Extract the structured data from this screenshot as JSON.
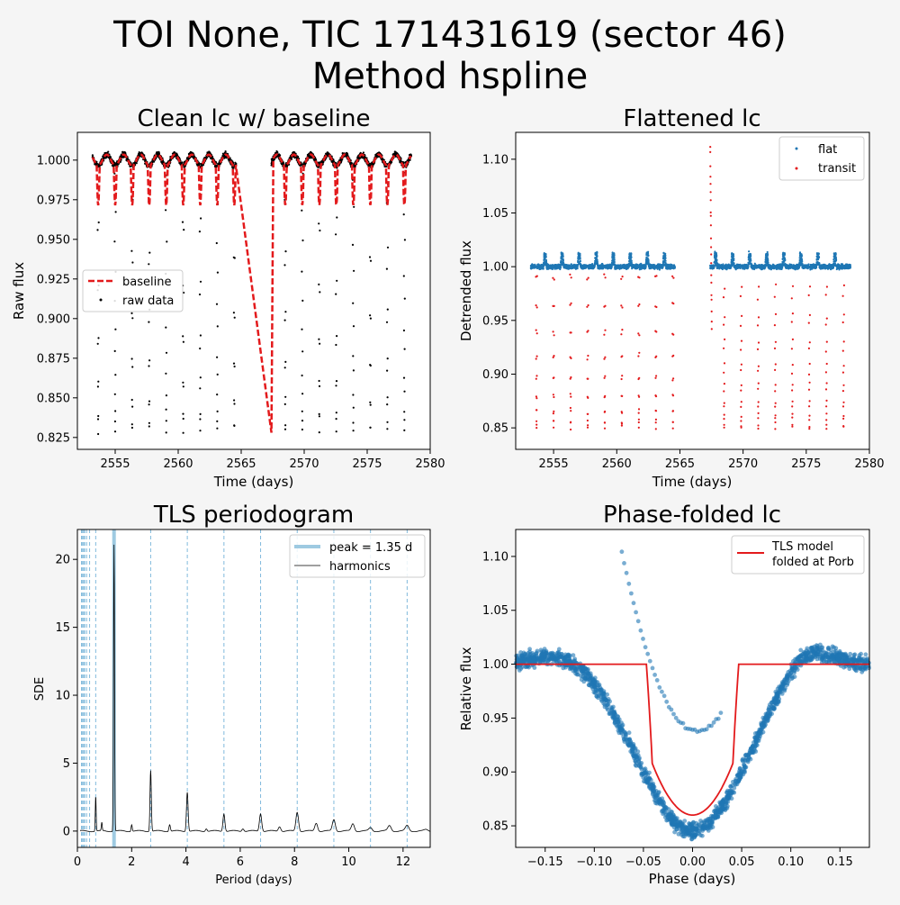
{
  "figure": {
    "title_line1": "TOI None, TIC 171431619 (sector 46)",
    "title_line2": "Method hspline"
  },
  "colors": {
    "background": "#f5f5f5",
    "flat": "#1f77b4",
    "transit": "#e31a1c",
    "baseline": "#e31a1c",
    "raw": "#000000",
    "peak": "#9ecae1",
    "harmonic_line": "#6baed6",
    "model": "#e31a1c"
  },
  "chart_data": [
    {
      "id": "clean",
      "type": "scatter",
      "title": "Clean lc w/ baseline",
      "xlabel": "Time (days)",
      "ylabel": "Raw flux",
      "xlim": [
        2552,
        2580
      ],
      "ylim": [
        0.8175,
        1.0175
      ],
      "xticks": [
        2555,
        2560,
        2565,
        2570,
        2575,
        2580
      ],
      "yticks": [
        0.825,
        0.85,
        0.875,
        0.9,
        0.925,
        0.95,
        0.975,
        1.0
      ],
      "ytick_labels": [
        "0.825",
        "0.850",
        "0.875",
        "0.900",
        "0.925",
        "0.950",
        "0.975",
        "1.000"
      ],
      "legend": {
        "position": "center-left",
        "entries": [
          "baseline",
          "raw data"
        ]
      },
      "segments": [
        [
          2553.2,
          2564.6
        ],
        [
          2567.4,
          2578.5
        ]
      ],
      "period": 1.35,
      "first_transit": 2553.65,
      "transit_depth_raw": 0.168,
      "baseline_dip_depth": 0.025,
      "baseline_gap_minimum": [
        2567.4,
        0.828
      ]
    },
    {
      "id": "flat",
      "type": "scatter",
      "title": "Flattened lc",
      "xlabel": "Time (days)",
      "ylabel": "Detrended flux",
      "xlim": [
        2552,
        2580
      ],
      "ylim": [
        0.83,
        1.125
      ],
      "xticks": [
        2555,
        2560,
        2565,
        2570,
        2575,
        2580
      ],
      "yticks": [
        0.85,
        0.9,
        0.95,
        1.0,
        1.05,
        1.1
      ],
      "ytick_labels": [
        "0.85",
        "0.90",
        "0.95",
        "1.00",
        "1.05",
        "1.10"
      ],
      "legend": {
        "position": "top-right",
        "entries": [
          "flat",
          "transit"
        ]
      },
      "transit_depth": 0.15,
      "segment_start_spike": 1.112
    },
    {
      "id": "tls",
      "type": "line",
      "title": "TLS periodogram",
      "xlabel": "Period (days)",
      "ylabel": "SDE",
      "xlim": [
        0,
        13
      ],
      "ylim": [
        -1.2,
        22.2
      ],
      "xticks": [
        0,
        2,
        4,
        6,
        8,
        10,
        12
      ],
      "yticks": [
        0,
        5,
        10,
        15,
        20
      ],
      "legend": {
        "position": "top-right",
        "entries": [
          "peak = 1.35 d",
          "harmonics"
        ]
      },
      "peak_period": 1.35,
      "harmonic_periods": [
        0.15,
        0.19,
        0.23,
        0.27,
        0.34,
        0.45,
        0.675,
        2.7,
        4.05,
        5.4,
        6.75,
        8.1,
        9.45,
        10.8,
        12.15
      ],
      "peaks": [
        {
          "x": 0.675,
          "y": 2.6
        },
        {
          "x": 0.9,
          "y": 0.6
        },
        {
          "x": 1.35,
          "y": 21.1
        },
        {
          "x": 2.0,
          "y": 0.5
        },
        {
          "x": 2.7,
          "y": 4.5
        },
        {
          "x": 3.4,
          "y": 0.5
        },
        {
          "x": 4.05,
          "y": 2.9
        },
        {
          "x": 4.75,
          "y": 0.2
        },
        {
          "x": 5.4,
          "y": 1.3
        },
        {
          "x": 6.1,
          "y": 0.2
        },
        {
          "x": 6.75,
          "y": 1.3
        },
        {
          "x": 7.45,
          "y": 0.35
        },
        {
          "x": 8.1,
          "y": 1.4
        },
        {
          "x": 8.8,
          "y": 0.6
        },
        {
          "x": 9.45,
          "y": 0.85
        },
        {
          "x": 10.15,
          "y": 0.55
        },
        {
          "x": 10.8,
          "y": 0.25
        },
        {
          "x": 11.5,
          "y": 0.4
        },
        {
          "x": 12.15,
          "y": 0.4
        },
        {
          "x": 12.85,
          "y": 0.1
        }
      ]
    },
    {
      "id": "fold",
      "type": "scatter",
      "title": "Phase-folded lc",
      "xlabel": "Phase (days)",
      "ylabel": "Relative flux",
      "xlim": [
        -0.18,
        0.18
      ],
      "ylim": [
        0.83,
        1.125
      ],
      "xticks": [
        -0.15,
        -0.1,
        -0.05,
        0.0,
        0.05,
        0.1,
        0.15
      ],
      "xtick_labels": [
        "−0.15",
        "−0.10",
        "−0.05",
        "0.00",
        "0.05",
        "0.10",
        "0.15"
      ],
      "yticks": [
        0.85,
        0.9,
        0.95,
        1.0,
        1.05,
        1.1
      ],
      "ytick_labels": [
        "0.85",
        "0.90",
        "0.95",
        "1.00",
        "1.05",
        "1.10"
      ],
      "legend": {
        "position": "top-right",
        "entries": [
          "TLS model",
          "folded at Porb"
        ]
      },
      "model": {
        "half_width": 0.047,
        "depth": 0.14,
        "ingress": 0.006
      }
    }
  ]
}
